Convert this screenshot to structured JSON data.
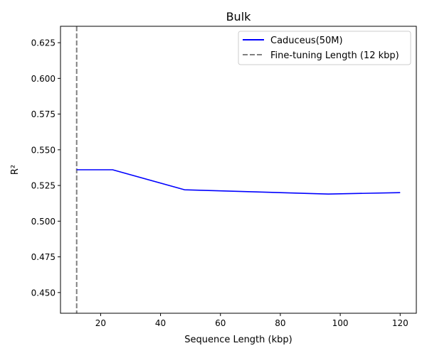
{
  "chart_data": {
    "type": "line",
    "title": "Bulk",
    "xlabel": "Sequence Length (kbp)",
    "ylabel": "R²",
    "xlim": [
      6.6,
      125.4
    ],
    "ylim": [
      0.4355,
      0.6365
    ],
    "xticks": [
      20,
      40,
      60,
      80,
      100,
      120
    ],
    "yticks": [
      0.45,
      0.475,
      0.5,
      0.525,
      0.55,
      0.575,
      0.6,
      0.625
    ],
    "xtick_labels": [
      "20",
      "40",
      "60",
      "80",
      "100",
      "120"
    ],
    "ytick_labels": [
      "0.450",
      "0.475",
      "0.500",
      "0.525",
      "0.550",
      "0.575",
      "0.600",
      "0.625"
    ],
    "series": [
      {
        "name": "Caduceus(50M)",
        "color": "#0000ff",
        "style": "solid",
        "x": [
          12,
          24,
          48,
          96,
          120
        ],
        "y": [
          0.536,
          0.536,
          0.522,
          0.519,
          0.52
        ]
      }
    ],
    "reference_lines": [
      {
        "name": "Fine-tuning Length (12 kbp)",
        "orientation": "vertical",
        "x": 12,
        "color": "#808080",
        "style": "dashed"
      }
    ],
    "grid": false,
    "legend_position": "top-right"
  }
}
